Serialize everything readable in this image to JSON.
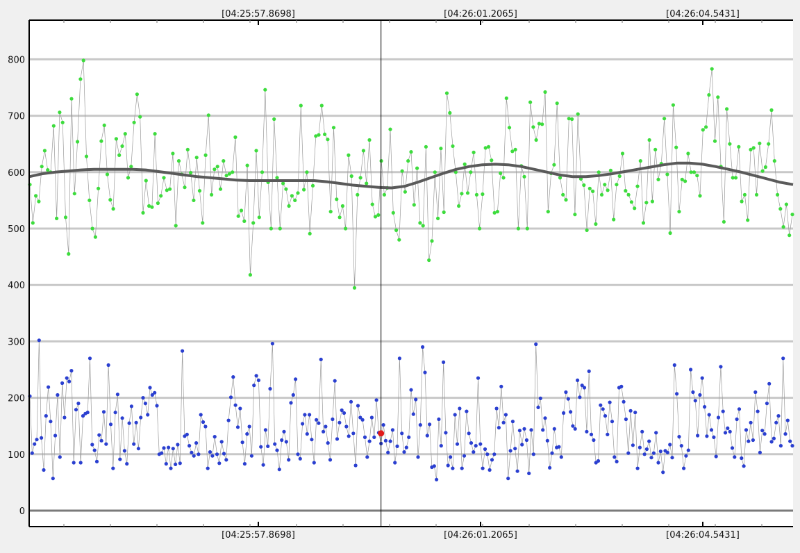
{
  "chart_data": {
    "type": "scatter",
    "title": "",
    "xlabel": "",
    "ylabel": "",
    "xlim": [
      0,
      330
    ],
    "ylim": [
      -30,
      870
    ],
    "y_ticks": [
      0,
      100,
      200,
      300,
      400,
      500,
      600,
      700,
      800
    ],
    "x_tick_labels": [
      {
        "x": 99,
        "label": "[04:25:57.8698]"
      },
      {
        "x": 195,
        "label": "[04:26:01.2065]"
      },
      {
        "x": 291,
        "label": "[04:26:04.5431]"
      }
    ],
    "grid": true,
    "legend": "none",
    "cursor": {
      "x": 152,
      "marker_y": 137
    },
    "series": [
      {
        "color": "#3ddc3d",
        "values": [
          578,
          510,
          558,
          548,
          610,
          638,
          604,
          600,
          682,
          518,
          706,
          688,
          520,
          455,
          730,
          562,
          654,
          765,
          798,
          628,
          550,
          500,
          485,
          571,
          655,
          683,
          596,
          551,
          535,
          659,
          630,
          646,
          668,
          590,
          610,
          688,
          738,
          698,
          528,
          585,
          540,
          538,
          668,
          545,
          558,
          590,
          568,
          570,
          633,
          505,
          620,
          596,
          573,
          640,
          599,
          550,
          626,
          567,
          510,
          630,
          701,
          560,
          605,
          610,
          570,
          620,
          594,
          597,
          600,
          662,
          522,
          532,
          513,
          612,
          418,
          510,
          638,
          520,
          600,
          746,
          582,
          500,
          694,
          590,
          500,
          580,
          570,
          540,
          558,
          550,
          563,
          718,
          569,
          600,
          491,
          576,
          664,
          666,
          718,
          667,
          658,
          530,
          679,
          552,
          520,
          540,
          500,
          630,
          593,
          395,
          560,
          590,
          638,
          580,
          657,
          543,
          521,
          524,
          620,
          560,
          572,
          676,
          528,
          497,
          480,
          602,
          565,
          620,
          636,
          542,
          607,
          510,
          505,
          645,
          444,
          478,
          600
        ],
        "values2": [
          518,
          642,
          529,
          740,
          705,
          646,
          600,
          540,
          562,
          614,
          563,
          600,
          635,
          560,
          500,
          561,
          643,
          645,
          621,
          528,
          530,
          598,
          590,
          731,
          679,
          637,
          640,
          500,
          611,
          592,
          500,
          724,
          680,
          657,
          686,
          685,
          742,
          530,
          598,
          613,
          722,
          590,
          560,
          551,
          695,
          694,
          525,
          703,
          588,
          577,
          497,
          571,
          566,
          508,
          600,
          560,
          578,
          568,
          603,
          516,
          578,
          593,
          633,
          567,
          560,
          547,
          536,
          575,
          620,
          510,
          546,
          657,
          548,
          640,
          587,
          615,
          695,
          596,
          492,
          719,
          644,
          530,
          587,
          584,
          633,
          600,
          600,
          594,
          558,
          675,
          680,
          737,
          783,
          655,
          733,
          610,
          512,
          712,
          650,
          590,
          590,
          645,
          548,
          560,
          515,
          640,
          643,
          560,
          651,
          602,
          609,
          650,
          710,
          620,
          560,
          535,
          503,
          543,
          488,
          525
        ],
        "trend": [
          592,
          597,
          600,
          602,
          604,
          605,
          605,
          605,
          605,
          604,
          601,
          598,
          595,
          592,
          590,
          588,
          586,
          585,
          585,
          585,
          585,
          585,
          585,
          583,
          580,
          577,
          575,
          573,
          572,
          575,
          582,
          590,
          598,
          605,
          610,
          613,
          614,
          613,
          610,
          605,
          600,
          595,
          592,
          592,
          594,
          597,
          601,
          605,
          609,
          613,
          616,
          616,
          614,
          610,
          605,
          600,
          594,
          588,
          582,
          578
        ],
        "trend_step": 5.55
      },
      {
        "color": "#2a3fd0",
        "values": [
          203,
          102,
          118,
          126,
          302,
          129,
          72,
          168,
          219,
          158,
          57,
          133,
          205,
          95,
          226,
          165,
          235,
          229,
          248,
          85,
          179,
          190,
          85,
          168,
          172,
          174,
          270,
          117,
          107,
          87,
          134,
          124,
          175,
          118,
          258,
          153,
          75,
          174,
          206,
          91,
          164,
          106,
          83,
          155,
          185,
          118,
          156,
          110,
          165,
          200,
          190,
          170,
          218,
          205,
          209,
          186,
          100,
          102,
          111,
          83,
          112,
          75,
          110,
          82,
          117,
          84,
          283,
          132,
          135,
          115,
          103,
          97,
          120,
          100,
          170,
          157,
          149,
          75,
          104,
          97,
          131,
          100,
          84,
          122,
          101,
          90,
          160,
          201,
          237,
          187,
          148,
          181,
          121,
          83,
          136,
          149,
          97,
          222,
          239,
          231,
          113,
          81,
          143,
          114,
          216,
          296,
          118,
          107,
          73,
          125,
          140,
          122,
          90,
          191,
          205,
          233,
          100,
          92,
          154,
          170,
          136,
          170,
          126,
          85,
          161,
          155,
          268,
          140,
          149,
          120,
          90,
          162,
          230,
          127,
          156,
          178,
          173,
          149,
          132,
          193,
          137,
          80,
          186,
          165,
          161,
          130,
          95,
          123,
          165,
          130,
          196,
          138,
          119,
          152,
          124,
          103,
          123,
          143,
          85,
          114,
          270,
          137,
          104,
          112,
          130
        ],
        "values2": [
          214,
          171,
          197,
          95,
          152,
          290,
          245,
          133,
          153,
          77,
          79,
          55,
          162,
          115,
          263,
          138,
          80,
          95,
          75,
          170,
          118,
          181,
          75,
          97,
          176,
          137,
          120,
          104,
          115,
          235,
          118,
          75,
          109,
          100,
          72,
          90,
          100,
          181,
          147,
          220,
          156,
          170,
          57,
          106,
          158,
          110,
          70,
          142,
          117,
          145,
          125,
          66,
          143,
          100,
          295,
          183,
          199,
          143,
          164,
          124,
          76,
          102,
          145,
          112,
          113,
          95,
          173,
          210,
          198,
          175,
          150,
          145,
          231,
          201,
          222,
          218,
          140,
          247,
          135,
          125,
          85,
          88,
          187,
          180,
          168,
          135,
          192,
          158,
          95,
          87,
          218,
          220,
          193,
          162,
          102,
          177,
          116,
          174,
          75,
          112,
          140,
          100,
          109,
          123,
          94,
          102,
          138,
          85,
          105,
          68,
          106,
          103,
          117,
          94,
          258,
          207,
          131,
          115,
          75,
          97,
          107,
          250,
          210,
          195,
          133,
          205,
          235,
          184,
          132,
          170,
          143,
          130,
          96,
          165,
          255,
          176,
          138,
          146,
          140,
          111,
          95,
          162,
          180,
          93,
          79,
          143,
          123,
          156,
          125,
          210,
          176,
          103,
          142,
          136,
          190,
          225,
          122,
          128,
          156,
          168,
          115,
          270,
          136,
          160,
          123,
          115
        ],
        "values3": []
      }
    ]
  }
}
